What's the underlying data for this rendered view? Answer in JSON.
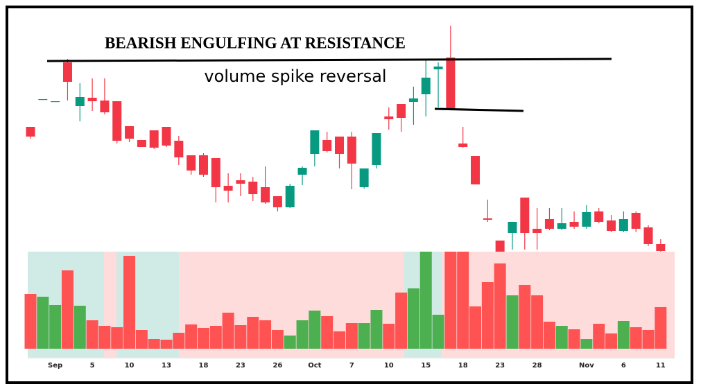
{
  "chart_data": {
    "type": "candlestick",
    "title": "BEARISH ENGULFING AT RESISTANCE",
    "subtitle": "volume spike reversal",
    "categories": [
      null,
      null,
      "Sep",
      null,
      null,
      "5",
      null,
      null,
      "10",
      null,
      null,
      "13",
      null,
      null,
      "18",
      null,
      null,
      "23",
      null,
      null,
      "26",
      null,
      null,
      "Oct",
      null,
      null,
      "7",
      null,
      null,
      "10",
      null,
      null,
      "15",
      null,
      null,
      "18",
      null,
      null,
      "23",
      null,
      null,
      "28",
      null,
      null,
      null,
      "Nov",
      null,
      null,
      "6",
      null,
      null,
      "11"
    ],
    "open": [
      182,
      222,
      219,
      275,
      212,
      224,
      220,
      219,
      183,
      163,
      177,
      182,
      162,
      141,
      141,
      137,
      97,
      105,
      103,
      95,
      82,
      66,
      113,
      143,
      163,
      168,
      168,
      95,
      127,
      197,
      215,
      218,
      229,
      265,
      282,
      158,
      140,
      50,
      18,
      29,
      80,
      35,
      49,
      35,
      45,
      38,
      60,
      47,
      32,
      58,
      37,
      13
    ],
    "high": [
      182,
      222,
      219,
      280,
      245,
      252,
      252,
      219,
      183,
      163,
      177,
      182,
      169,
      141,
      144,
      137,
      115,
      115,
      110,
      125,
      82,
      100,
      125,
      177,
      175,
      168,
      175,
      122,
      173,
      210,
      215,
      240,
      280,
      275,
      328,
      182,
      140,
      77,
      18,
      45,
      80,
      65,
      65,
      65,
      60,
      69,
      65,
      55,
      60,
      60,
      40,
      20
    ],
    "low": [
      165,
      222,
      219,
      220,
      190,
      205,
      200,
      158,
      160,
      153,
      150,
      153,
      127,
      113,
      110,
      73,
      73,
      82,
      75,
      71,
      60,
      65,
      98,
      125,
      145,
      122,
      92,
      93,
      122,
      178,
      175,
      185,
      197,
      210,
      208,
      152,
      99,
      45,
      2,
      5,
      5,
      5,
      33,
      33,
      35,
      35,
      43,
      30,
      30,
      30,
      10,
      2
    ],
    "close": [
      168,
      222,
      219,
      247,
      225,
      219,
      203,
      162,
      165,
      153,
      152,
      155,
      138,
      119,
      113,
      95,
      90,
      100,
      85,
      73,
      66,
      97,
      123,
      177,
      147,
      143,
      129,
      122,
      173,
      193,
      195,
      223,
      253,
      269,
      208,
      153,
      99,
      48,
      2,
      45,
      29,
      29,
      35,
      43,
      38,
      59,
      45,
      32,
      49,
      35,
      13,
      3
    ],
    "volume": [
      79,
      75,
      63,
      113,
      62,
      41,
      33,
      31,
      134,
      27,
      14,
      13,
      23,
      35,
      30,
      33,
      52,
      34,
      46,
      41,
      27,
      19,
      41,
      55,
      47,
      25,
      37,
      37,
      56,
      36,
      81,
      87,
      140,
      49,
      140,
      140,
      61,
      96,
      123,
      77,
      92,
      77,
      39,
      33,
      28,
      14,
      36,
      22,
      40,
      31,
      27,
      60
    ],
    "ylim": [
      0,
      330
    ],
    "volume_ylim": [
      0,
      140
    ],
    "up_color": "#089981",
    "down_color": "#f23645",
    "volume_up_color": "#4caf50",
    "volume_down_color": "#ff5252"
  }
}
